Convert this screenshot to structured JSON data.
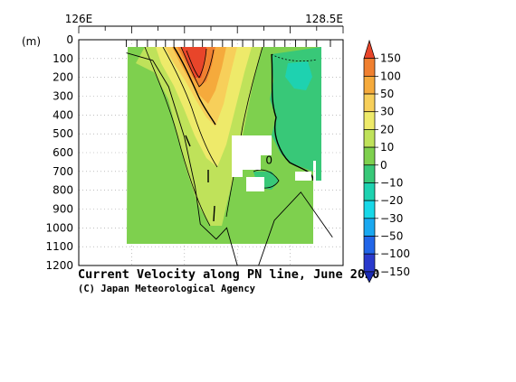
{
  "chart_data": {
    "type": "heatmap",
    "title": "Current Velocity along PN line, June 2020",
    "credit": "(C) Japan Meteorological Agency",
    "ylabel": "(m)",
    "x_tick_labels": [
      "126E",
      "128.5E"
    ],
    "x_range": [
      126.0,
      128.5
    ],
    "ylim": [
      0,
      1200
    ],
    "y_inverted": true,
    "y_ticks": [
      0,
      100,
      200,
      300,
      400,
      500,
      600,
      700,
      800,
      900,
      1000,
      1100,
      1200
    ],
    "grid": true,
    "legend_position": "right",
    "colorbar": {
      "levels": [
        150,
        100,
        50,
        30,
        20,
        10,
        0,
        -10,
        -20,
        -30,
        -50,
        -100,
        -150
      ],
      "level_labels": [
        "150",
        "100",
        "50",
        "30",
        "20",
        "10",
        "0",
        "−10",
        "−20",
        "−30",
        "−50",
        "−100",
        "−150"
      ],
      "colors": [
        "#e8452a",
        "#f08030",
        "#f5aa3c",
        "#f7cf5a",
        "#eeea6a",
        "#bfe25a",
        "#7ed04e",
        "#38c878",
        "#1ed2b0",
        "#18d8e8",
        "#1aa8f0",
        "#2266e8",
        "#2a3acc",
        "#1a2ab4"
      ]
    },
    "bottom_depth_profile": [
      {
        "lon": 126.45,
        "depth": 70
      },
      {
        "lon": 126.7,
        "depth": 110
      },
      {
        "lon": 126.85,
        "depth": 250
      },
      {
        "lon": 127.0,
        "depth": 520
      },
      {
        "lon": 127.1,
        "depth": 780
      },
      {
        "lon": 127.15,
        "depth": 980
      },
      {
        "lon": 127.3,
        "depth": 1060
      },
      {
        "lon": 127.4,
        "depth": 1000
      },
      {
        "lon": 127.5,
        "depth": 1200
      },
      {
        "lon": 127.7,
        "depth": 1200
      },
      {
        "lon": 127.85,
        "depth": 960
      },
      {
        "lon": 128.1,
        "depth": 810
      },
      {
        "lon": 128.4,
        "depth": 1050
      }
    ],
    "stations_lon": [
      126.45,
      126.55,
      126.65,
      126.73,
      126.82,
      126.9,
      127.0,
      127.08,
      127.17,
      127.26,
      127.36,
      127.45,
      127.55,
      127.65,
      127.75,
      127.85,
      127.95,
      128.05,
      128.15,
      128.25,
      128.38
    ],
    "contour_annotations": [
      {
        "text": "0",
        "lon": 127.8,
        "depth": 640
      }
    ],
    "velocity_samples": [
      {
        "lon": 126.5,
        "depth": 50,
        "value": 12
      },
      {
        "lon": 126.6,
        "depth": 80,
        "value": 18
      },
      {
        "lon": 126.75,
        "depth": 60,
        "value": 40
      },
      {
        "lon": 126.85,
        "depth": 50,
        "value": 70
      },
      {
        "lon": 126.95,
        "depth": 80,
        "value": 110
      },
      {
        "lon": 127.05,
        "depth": 100,
        "value": 130
      },
      {
        "lon": 127.1,
        "depth": 150,
        "value": 90
      },
      {
        "lon": 127.15,
        "depth": 250,
        "value": 45
      },
      {
        "lon": 127.2,
        "depth": 400,
        "value": 30
      },
      {
        "lon": 127.3,
        "depth": 300,
        "value": 30
      },
      {
        "lon": 127.4,
        "depth": 200,
        "value": 22
      },
      {
        "lon": 127.2,
        "depth": 600,
        "value": 15
      },
      {
        "lon": 127.15,
        "depth": 800,
        "value": 8
      },
      {
        "lon": 127.5,
        "depth": 450,
        "value": 12
      },
      {
        "lon": 127.6,
        "depth": 300,
        "value": 5
      },
      {
        "lon": 127.7,
        "depth": 200,
        "value": -8
      },
      {
        "lon": 127.85,
        "depth": 150,
        "value": -12
      },
      {
        "lon": 128.0,
        "depth": 300,
        "value": -12
      },
      {
        "lon": 128.2,
        "depth": 450,
        "value": -14
      },
      {
        "lon": 128.1,
        "depth": 600,
        "value": -5
      },
      {
        "lon": 127.7,
        "depth": 700,
        "value": -3
      },
      {
        "lon": 127.95,
        "depth": 750,
        "value": -10
      }
    ]
  }
}
